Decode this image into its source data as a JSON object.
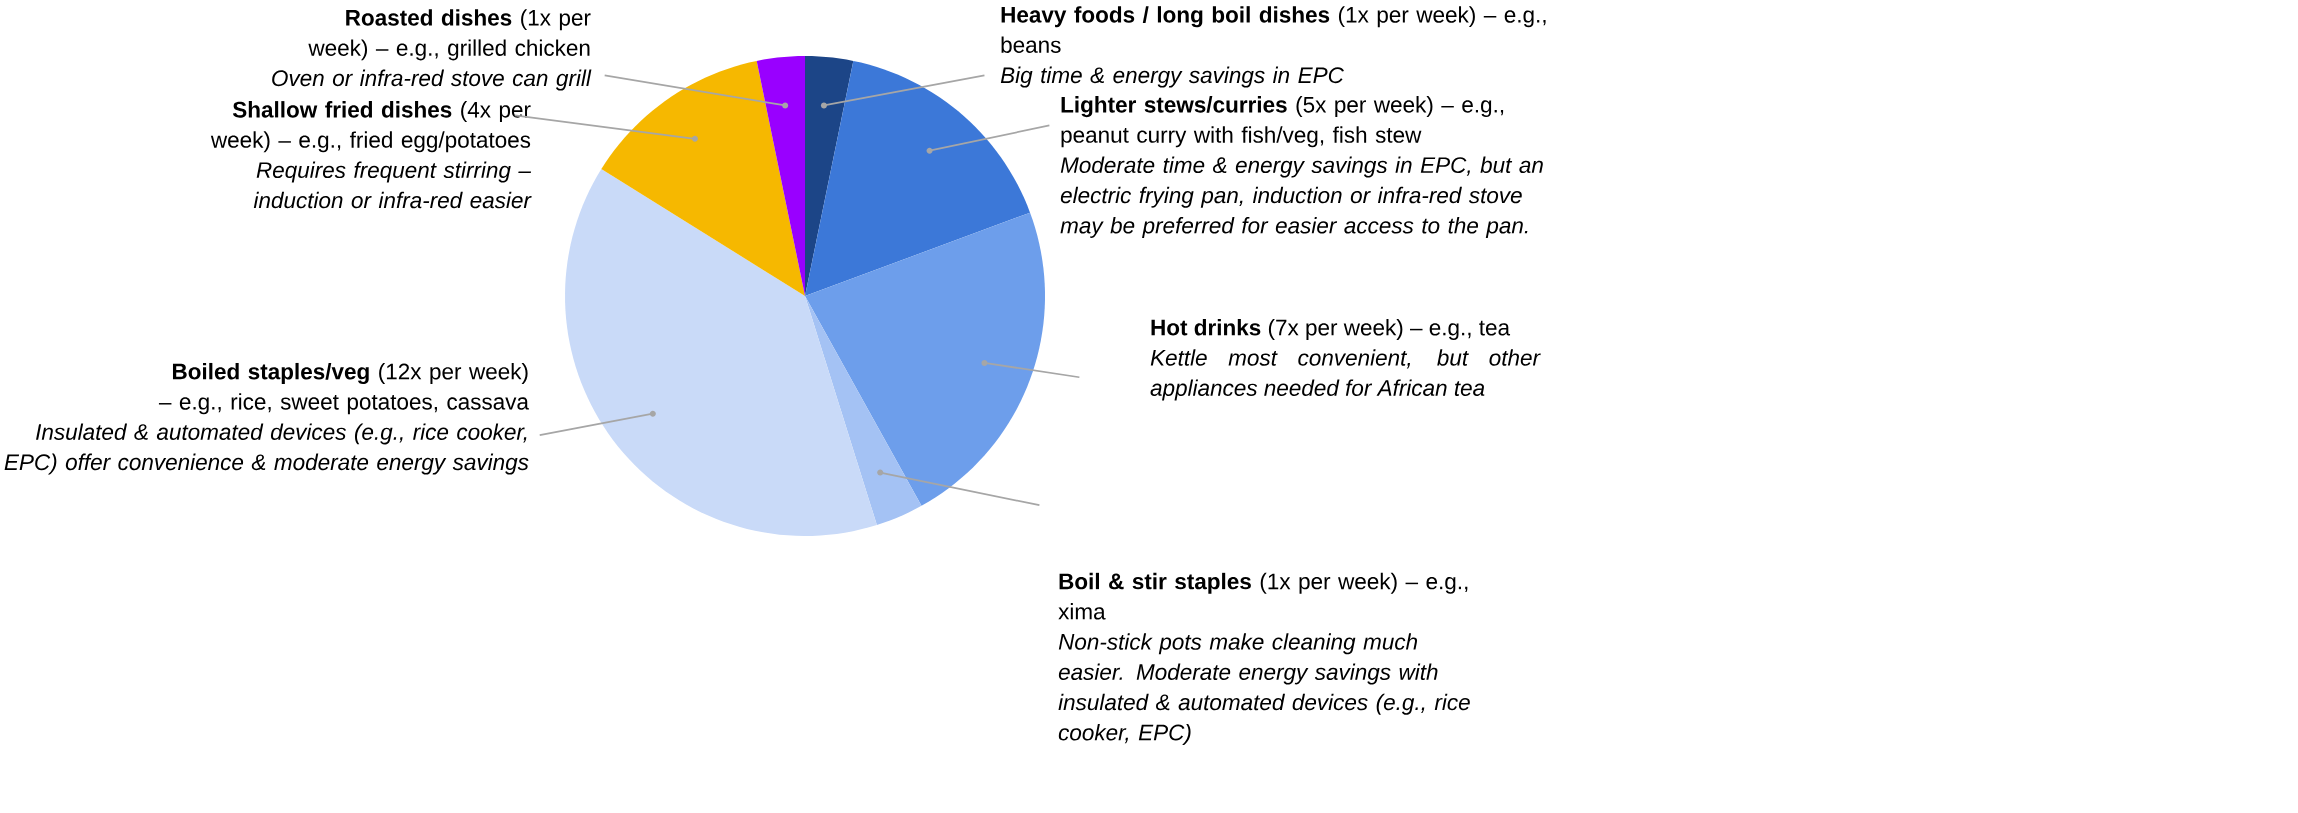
{
  "chart_data": {
    "type": "pie",
    "categories": [
      "**Heavy foods / long boil dishes** (1x per week) – e.g., beans",
      "**Lighter stews/curries** (5x per week) – e.g., peanut curry with fish/veg, fish stew",
      "**Hot drinks** (7x per week) – e.g., tea",
      "**Boil & stir staples** (1x per week) – e.g., xima",
      "**Boiled staples/veg** (12x per week) – e.g., rice, sweet potatoes, cassava",
      "**Shallow fried dishes** (4x per week) – e.g., fried egg/potatoes",
      "**Roasted dishes** (1x per week) – e.g., grilled chicken"
    ],
    "values": [
      1,
      5,
      7,
      1,
      12,
      4,
      1
    ],
    "colors": [
      "#1c4587",
      "#3c78d8",
      "#6d9eeb",
      "#a4c2f4",
      "#c9daf8",
      "#f6b800",
      "#9900ff"
    ],
    "annotations": [
      "Big time & energy savings in EPC",
      "Moderate time & energy savings in EPC, but an electric frying pan, induction or infra-red stove may be preferred for easier access to the pan.",
      "Kettle most convenient, but other appliances needed for African tea",
      "Non-stick pots make cleaning much easier. Moderate energy savings with insulated & automated devices (e.g., rice cooker, EPC)",
      "Insulated & automated devices (e.g., rice cooker, EPC) offer convenience & moderate energy savings",
      "Requires frequent stirring – induction or infra-red easier",
      "Oven or infra-red stove can grill"
    ]
  }
}
